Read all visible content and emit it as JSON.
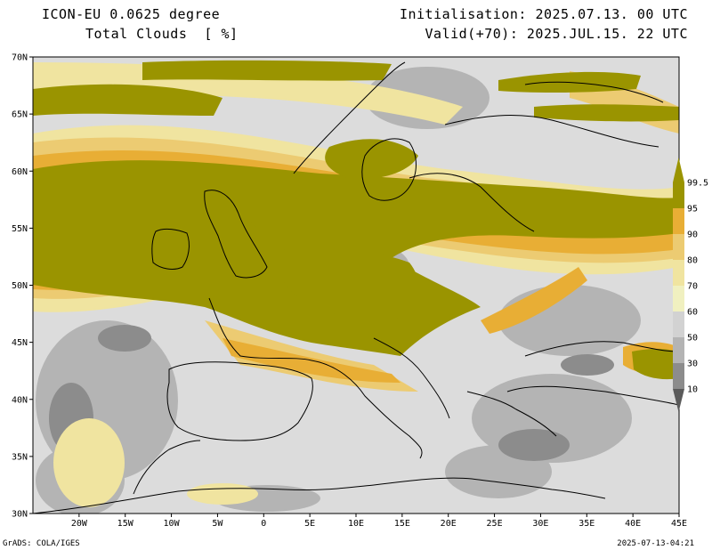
{
  "header": {
    "model": "ICON-EU 0.0625 degree",
    "field": "Total Clouds  [ %]",
    "init": "Initialisation: 2025.07.13. 00 UTC",
    "valid": "Valid(+70): 2025.JUL.15. 22 UTC"
  },
  "footer": {
    "left": "GrADS: COLA/IGES",
    "right": "2025-07-13-04:21"
  },
  "map": {
    "lon_range": [
      -25,
      45
    ],
    "lat_range": [
      30,
      70
    ],
    "lat_ticks": [
      "30N",
      "35N",
      "40N",
      "45N",
      "50N",
      "55N",
      "60N",
      "65N",
      "70N"
    ],
    "lon_ticks": [
      "20W",
      "15W",
      "10W",
      "5W",
      "0",
      "5E",
      "10E",
      "15E",
      "20E",
      "25E",
      "30E",
      "35E",
      "40E",
      "45E"
    ]
  },
  "colorbar": {
    "levels": [
      "10",
      "30",
      "50",
      "60",
      "70",
      "80",
      "90",
      "95",
      "99.5"
    ],
    "colors": [
      "#5a5a5a",
      "#8c8c8c",
      "#b4b4b4",
      "#d2d2d2",
      "#f0f0c0",
      "#f0e4a0",
      "#eccb72",
      "#e8ae35",
      "#9a9400"
    ]
  },
  "colors": {
    "overcast": "#9a9400",
    "broken": "#e8ae35",
    "scattered": "#eccb72",
    "thin": "#f0e4a0",
    "clear": "#dcdcdc",
    "low_grey": "#b4b4b4",
    "dark_grey": "#8c8c8c",
    "coast": "#000000"
  }
}
